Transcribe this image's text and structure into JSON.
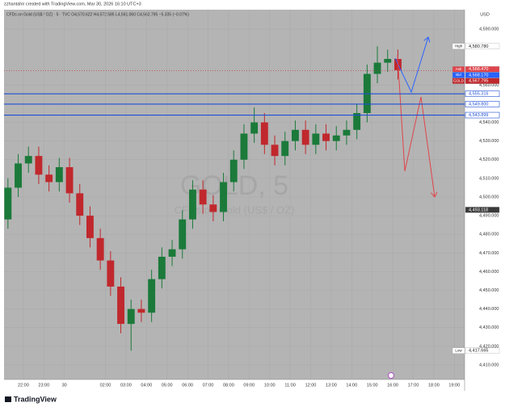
{
  "chart_data": {
    "type": "candlestick",
    "title": "zzhantahir created with TradingView.com, Mar 30, 2026 16:10 UTC+3",
    "subtitle": "CFDs on Gold (US$ / OZ) · 5 · TVC  O4,570.622 H4,572.585 L4,561.060 C4,562.795 −5.305 (−0.07%)",
    "watermark": "GOLD, 5",
    "watermark_sub": "CFDs on Gold (US$ / OZ)",
    "currency": "USD",
    "brand": "TradingView",
    "up_color": "#1b7a3a",
    "down_color": "#c0282d",
    "x": [
      21.25,
      21.75,
      22.25,
      22.75,
      23.25,
      23.75,
      24.25,
      24.75,
      25.25,
      25.75,
      26.25,
      26.75,
      27.25,
      27.75,
      28.25,
      28.75,
      29.25,
      29.75,
      30.25,
      30.75,
      31.25,
      31.75,
      32.25,
      32.75,
      33.25,
      33.75,
      34.25,
      34.75,
      35.25,
      35.75,
      36.25,
      36.75,
      37.25,
      37.75,
      38.25,
      38.75,
      39.25,
      39.75,
      40.25
    ],
    "open": [
      4488,
      4505,
      4518,
      4522,
      4512,
      4508,
      4516,
      4502,
      4490,
      4478,
      4466,
      4452,
      4432,
      4440,
      4438,
      4456,
      4468,
      4472,
      4488,
      4504,
      4496,
      4492,
      4508,
      4520,
      4534,
      4540,
      4528,
      4522,
      4530,
      4536,
      4528,
      4534,
      4530,
      4533,
      4536,
      4545,
      4566,
      4572,
      4574
    ],
    "high": [
      4510,
      4523,
      4527,
      4527,
      4517,
      4521,
      4521,
      4507,
      4495,
      4483,
      4471,
      4457,
      4445,
      4445,
      4461,
      4473,
      4477,
      4493,
      4509,
      4509,
      4501,
      4513,
      4525,
      4539,
      4548,
      4545,
      4533,
      4535,
      4541,
      4541,
      4539,
      4539,
      4538,
      4541,
      4550,
      4571,
      4580.78,
      4579,
      4579
    ],
    "low": [
      4483,
      4500,
      4513,
      4507,
      4503,
      4503,
      4497,
      4485,
      4473,
      4461,
      4447,
      4427,
      4417.665,
      4433,
      4433,
      4451,
      4463,
      4467,
      4483,
      4491,
      4487,
      4487,
      4503,
      4515,
      4529,
      4523,
      4517,
      4517,
      4525,
      4523,
      4523,
      4525,
      4525,
      4528,
      4531,
      4540,
      4561,
      4567,
      4563
    ],
    "close": [
      4505,
      4518,
      4522,
      4512,
      4508,
      4516,
      4502,
      4490,
      4478,
      4466,
      4452,
      4432,
      4440,
      4438,
      4456,
      4468,
      4472,
      4488,
      4504,
      4496,
      4492,
      4508,
      4520,
      4534,
      4540,
      4528,
      4522,
      4530,
      4536,
      4528,
      4534,
      4530,
      4533,
      4536,
      4545,
      4566,
      4572,
      4574,
      4568
    ],
    "xlim": [
      21.06,
      43.5
    ],
    "ylim": [
      4402.2,
      4600.4
    ],
    "xticks": [
      {
        "value": 22,
        "label": "22:00"
      },
      {
        "value": 23,
        "label": "23:00"
      },
      {
        "value": 24,
        "label": "30"
      },
      {
        "value": 26,
        "label": "02:00"
      },
      {
        "value": 27,
        "label": "03:00"
      },
      {
        "value": 28,
        "label": "04:00"
      },
      {
        "value": 29,
        "label": "05:00"
      },
      {
        "value": 30,
        "label": "06:00"
      },
      {
        "value": 31,
        "label": "07:00"
      },
      {
        "value": 32,
        "label": "08:00"
      },
      {
        "value": 33,
        "label": "09:00"
      },
      {
        "value": 34,
        "label": "10:00"
      },
      {
        "value": 35,
        "label": "11:00"
      },
      {
        "value": 36,
        "label": "12:00"
      },
      {
        "value": 37,
        "label": "13:00"
      },
      {
        "value": 38,
        "label": "14:00"
      },
      {
        "value": 39,
        "label": "15:00"
      },
      {
        "value": 40,
        "label": "16:00"
      },
      {
        "value": 41,
        "label": "17:00"
      },
      {
        "value": 42,
        "label": "18:00"
      },
      {
        "value": 43,
        "label": "19:00"
      }
    ],
    "yticks": [
      {
        "value": 4410,
        "label": "4,410.000"
      },
      {
        "value": 4420,
        "label": "4,420.000"
      },
      {
        "value": 4430,
        "label": "4,430.000"
      },
      {
        "value": 4440,
        "label": "4,440.000"
      },
      {
        "value": 4450,
        "label": "4,450.000"
      },
      {
        "value": 4460,
        "label": "4,460.000"
      },
      {
        "value": 4470,
        "label": "4,470.000"
      },
      {
        "value": 4480,
        "label": "4,480.000"
      },
      {
        "value": 4490,
        "label": "4,490.000"
      },
      {
        "value": 4500,
        "label": "4,500.000"
      },
      {
        "value": 4510,
        "label": "4,510.000"
      },
      {
        "value": 4520,
        "label": "4,520.000"
      },
      {
        "value": 4530,
        "label": "4,530.000"
      },
      {
        "value": 4540,
        "label": "4,540.000"
      },
      {
        "value": 4560,
        "label": "4,560.000"
      },
      {
        "value": 4590,
        "label": "4,590.000"
      }
    ],
    "grid": true,
    "level_color": "#1f4fd6",
    "levels": [
      {
        "value": 4555.316,
        "label": "4,555.316"
      },
      {
        "value": 4549.8,
        "label": "4,549.800"
      },
      {
        "value": 4543.899,
        "label": "4,543.899"
      }
    ],
    "price_labels": [
      {
        "tag": "High",
        "value": 4580.78,
        "label": "4,580.780",
        "color": "#ffffff",
        "text_color": "#222222"
      },
      {
        "tag": "Ask",
        "value": 4568.47,
        "label": "4,568.470",
        "color": "#e0454b",
        "text_color": "#ffffff"
      },
      {
        "tag": "Bid",
        "value": 4568.17,
        "label": "4,568.170",
        "color": "#2962ff",
        "text_color": "#ffffff"
      },
      {
        "tag": "GOLD",
        "value": 4567.795,
        "label": "4,567.795",
        "color": "#c0282d",
        "text_color": "#ffffff"
      },
      {
        "value": 4493.118,
        "label": "4,493.118",
        "color": "#3a3a3a",
        "text_color": "#ffffff"
      },
      {
        "tag": "Low",
        "value": 4417.665,
        "label": "4,417.665",
        "color": "#ffffff",
        "text_color": "#222222"
      }
    ]
  }
}
